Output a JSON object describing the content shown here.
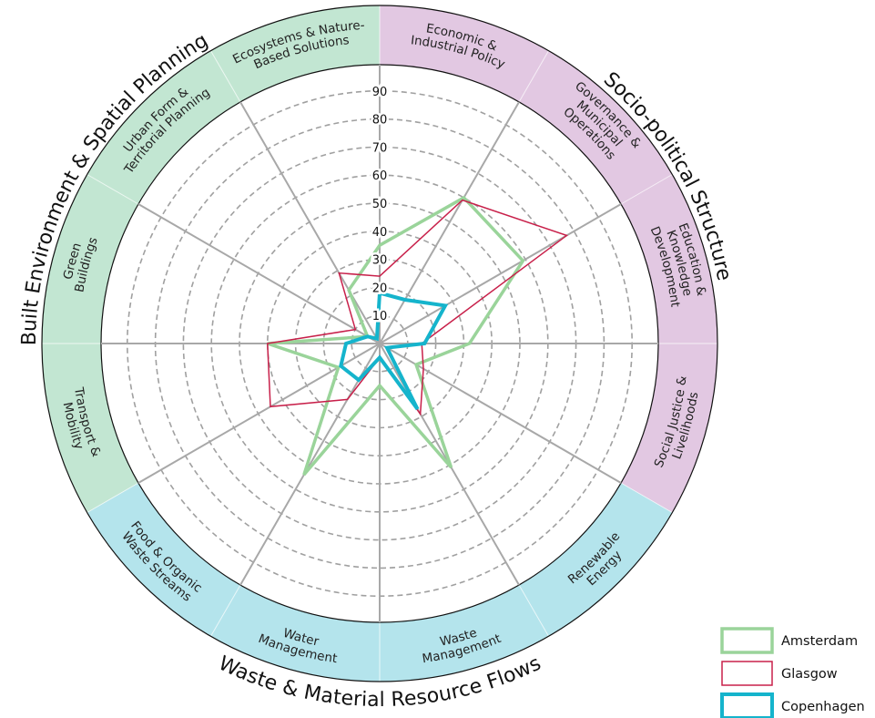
{
  "chart_data": {
    "type": "radar",
    "r_ticks": [
      10,
      20,
      30,
      40,
      50,
      60,
      70,
      80,
      90
    ],
    "r_max": 100,
    "categories": [
      "Economic & Industrial Policy",
      "Governance & Municipal Operations",
      "Education & Knowledge Development",
      "Social Justice & Livelihoods",
      "Renewable Energy",
      "Waste Management",
      "Water Management",
      "Food & Organic Waste Streams",
      "Transport & Mobility",
      "Green Buildings",
      "Urban Form & Territorial Planning",
      "Ecosystems & Nature-Based Solutions"
    ],
    "category_labels": [
      [
        "Economic &",
        "Industrial Policy"
      ],
      [
        "Governance &",
        "Municipal",
        "Operations"
      ],
      [
        "Education &",
        "Knowledge",
        "Development"
      ],
      [
        "Social Justice &",
        "Livelihoods"
      ],
      [
        "Renewable",
        "Energy"
      ],
      [
        "Waste",
        "Management"
      ],
      [
        "Water",
        "Management"
      ],
      [
        "Food & Organic",
        "Waste Streams"
      ],
      [
        "Transport &",
        "Mobility"
      ],
      [
        "Green",
        "Buildings"
      ],
      [
        "Urban Form &",
        "Territorial Planning"
      ],
      [
        "Ecosystems & Nature-",
        "Based Solutions"
      ]
    ],
    "groups": [
      {
        "name": "Socio-political Structure",
        "color": "#e2c8e2",
        "categories": [
          0,
          1,
          2,
          3
        ]
      },
      {
        "name": "Waste & Material Resource Flows",
        "color": "#b4e4ec",
        "categories": [
          4,
          5,
          6,
          7
        ]
      },
      {
        "name": "Built Environment & Spatial Planning",
        "color": "#c2e6d2",
        "categories": [
          8,
          9,
          10,
          11
        ]
      }
    ],
    "series": [
      {
        "name": "Amsterdam",
        "color": "#9ad49a",
        "values": [
          35,
          60,
          59,
          32,
          15,
          51,
          15,
          54,
          17,
          40,
          5,
          22
        ]
      },
      {
        "name": "Glasgow",
        "color": "#c8204a",
        "values": [
          24,
          59,
          77,
          15,
          18,
          29,
          5,
          23,
          45,
          40,
          10,
          29
        ]
      },
      {
        "name": "Copenhagen",
        "color": "#15b4cc",
        "values": [
          18,
          18,
          27,
          16,
          3,
          27,
          5,
          15,
          16,
          12,
          5,
          2
        ]
      }
    ],
    "grid": true,
    "legend": "bottom-right"
  }
}
